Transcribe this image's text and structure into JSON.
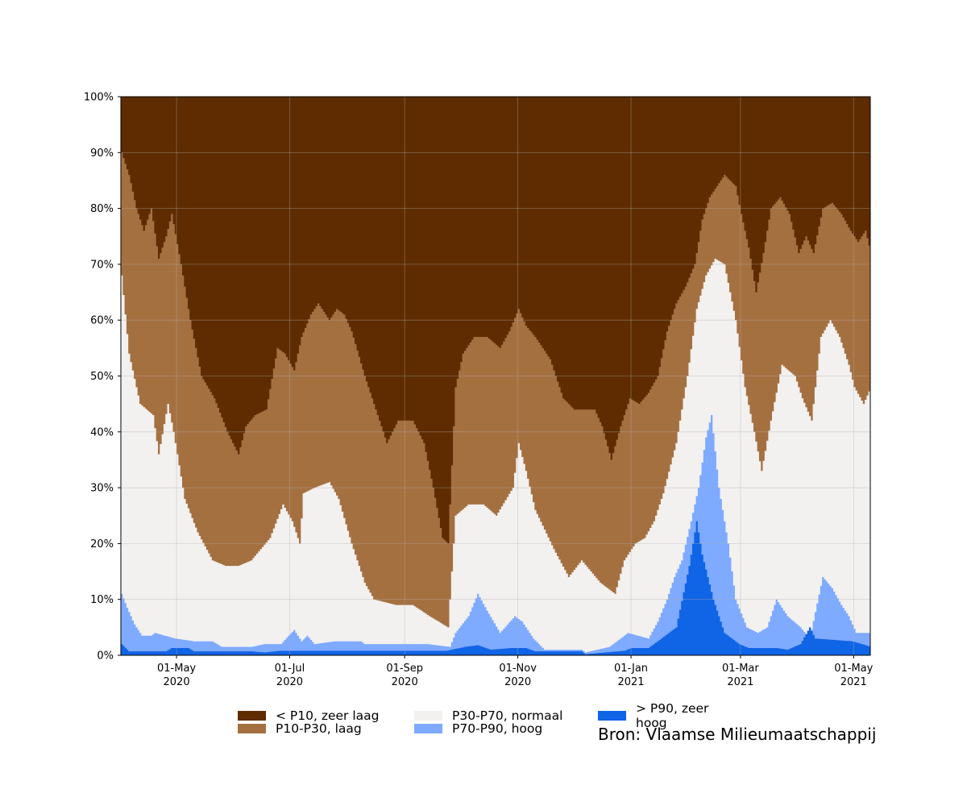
{
  "chart_data": {
    "type": "area",
    "stacked": true,
    "stacking": "percent",
    "title": "",
    "xlabel": "",
    "ylabel": "",
    "x_range": [
      "2020-04-01",
      "2021-05-10"
    ],
    "ylim": [
      0,
      100
    ],
    "grid": true,
    "y_ticks": [
      {
        "value": 0,
        "label": "0%"
      },
      {
        "value": 10,
        "label": "10%"
      },
      {
        "value": 20,
        "label": "20%"
      },
      {
        "value": 30,
        "label": "30%"
      },
      {
        "value": 40,
        "label": "40%"
      },
      {
        "value": 50,
        "label": "50%"
      },
      {
        "value": 60,
        "label": "60%"
      },
      {
        "value": 70,
        "label": "70%"
      },
      {
        "value": 80,
        "label": "80%"
      },
      {
        "value": 90,
        "label": "90%"
      },
      {
        "value": 100,
        "label": "100%"
      }
    ],
    "x_ticks": [
      {
        "date": "2020-05-01",
        "line1": "01-May",
        "line2": "2020"
      },
      {
        "date": "2020-07-01",
        "line1": "01-Jul",
        "line2": "2020"
      },
      {
        "date": "2020-09-01",
        "line1": "01-Sep",
        "line2": "2020"
      },
      {
        "date": "2020-11-01",
        "line1": "01-Nov",
        "line2": "2020"
      },
      {
        "date": "2021-01-01",
        "line1": "01-Jan",
        "line2": "2021"
      },
      {
        "date": "2021-03-01",
        "line1": "01-Mar",
        "line2": "2021"
      },
      {
        "date": "2021-05-01",
        "line1": "01-May",
        "line2": "2021"
      }
    ],
    "legend": [
      {
        "label": "< P10, zeer laag",
        "color": "#5e2c00"
      },
      {
        "label": "P10-P30, laag",
        "color": "#a57040"
      },
      {
        "label": "P30-P70, normaal",
        "color": "#f2f1f0"
      },
      {
        "label": "P70-P90, hoog",
        "color": "#7eaaff"
      },
      {
        "label": "> P90, zeer hoog",
        "color": "#1064e6"
      }
    ],
    "legend_placement": "below",
    "cumulative_boundaries": [
      {
        "name": "> P90, zeer hoog",
        "color": "#1064e6",
        "points": [
          [
            "2020-04-01",
            2
          ],
          [
            "2020-04-05",
            0.7
          ],
          [
            "2020-04-25",
            0.7
          ],
          [
            "2020-04-28",
            1.3
          ],
          [
            "2020-05-07",
            1.3
          ],
          [
            "2020-05-10",
            0.7
          ],
          [
            "2020-06-10",
            0.7
          ],
          [
            "2020-06-17",
            0.5
          ],
          [
            "2020-06-25",
            0.8
          ],
          [
            "2020-08-20",
            0.8
          ],
          [
            "2020-09-23",
            0.8
          ],
          [
            "2020-10-03",
            1.5
          ],
          [
            "2020-10-10",
            1.8
          ],
          [
            "2020-10-17",
            1.0
          ],
          [
            "2020-10-28",
            1.3
          ],
          [
            "2020-11-05",
            1.3
          ],
          [
            "2020-11-10",
            0.7
          ],
          [
            "2020-12-05",
            0.7
          ],
          [
            "2020-12-07",
            0.2
          ],
          [
            "2020-12-28",
            0.8
          ],
          [
            "2021-01-01",
            1.3
          ],
          [
            "2021-01-10",
            1.3
          ],
          [
            "2021-01-17",
            3
          ],
          [
            "2021-01-25",
            5
          ],
          [
            "2021-02-01",
            16
          ],
          [
            "2021-02-05",
            24
          ],
          [
            "2021-02-08",
            18
          ],
          [
            "2021-02-14",
            10
          ],
          [
            "2021-02-20",
            4
          ],
          [
            "2021-02-28",
            2
          ],
          [
            "2021-03-05",
            1.3
          ],
          [
            "2021-03-20",
            1.3
          ],
          [
            "2021-03-26",
            1
          ],
          [
            "2021-04-02",
            2
          ],
          [
            "2021-04-07",
            5
          ],
          [
            "2021-04-10",
            3
          ],
          [
            "2021-04-30",
            2.5
          ],
          [
            "2021-05-10",
            1.5
          ]
        ]
      },
      {
        "name": "P70-P90, hoog",
        "color": "#7eaaff",
        "points": [
          [
            "2020-04-01",
            11
          ],
          [
            "2020-04-04",
            8.5
          ],
          [
            "2020-04-08",
            5.5
          ],
          [
            "2020-04-12",
            3.5
          ],
          [
            "2020-04-17",
            3.5
          ],
          [
            "2020-04-19",
            4
          ],
          [
            "2020-04-30",
            3
          ],
          [
            "2020-05-10",
            2.5
          ],
          [
            "2020-05-20",
            2.5
          ],
          [
            "2020-05-25",
            1.5
          ],
          [
            "2020-06-10",
            1.5
          ],
          [
            "2020-06-17",
            2
          ],
          [
            "2020-06-26",
            2
          ],
          [
            "2020-06-30",
            3.5
          ],
          [
            "2020-07-03",
            4.5
          ],
          [
            "2020-07-07",
            2.5
          ],
          [
            "2020-07-10",
            3.5
          ],
          [
            "2020-07-14",
            2
          ],
          [
            "2020-07-25",
            2.5
          ],
          [
            "2020-08-08",
            2.5
          ],
          [
            "2020-08-10",
            2
          ],
          [
            "2020-09-13",
            2
          ],
          [
            "2020-09-25",
            1.5
          ],
          [
            "2020-09-28",
            4
          ],
          [
            "2020-10-05",
            7
          ],
          [
            "2020-10-10",
            11
          ],
          [
            "2020-10-15",
            8
          ],
          [
            "2020-10-22",
            4
          ],
          [
            "2020-10-30",
            7
          ],
          [
            "2020-11-03",
            6
          ],
          [
            "2020-11-09",
            3
          ],
          [
            "2020-11-15",
            1
          ],
          [
            "2020-12-05",
            1
          ],
          [
            "2020-12-07",
            0.5
          ],
          [
            "2020-12-20",
            1.5
          ],
          [
            "2020-12-30",
            4
          ],
          [
            "2021-01-10",
            3
          ],
          [
            "2021-01-15",
            6
          ],
          [
            "2021-01-20",
            10
          ],
          [
            "2021-01-24",
            14
          ],
          [
            "2021-01-28",
            17
          ],
          [
            "2021-02-02",
            24
          ],
          [
            "2021-02-06",
            30
          ],
          [
            "2021-02-10",
            39
          ],
          [
            "2021-02-13",
            43
          ],
          [
            "2021-02-17",
            30
          ],
          [
            "2021-02-22",
            20
          ],
          [
            "2021-02-26",
            10
          ],
          [
            "2021-03-04",
            5
          ],
          [
            "2021-03-10",
            4
          ],
          [
            "2021-03-15",
            5
          ],
          [
            "2021-03-20",
            10
          ],
          [
            "2021-03-26",
            7
          ],
          [
            "2021-04-02",
            5
          ],
          [
            "2021-04-07",
            3
          ],
          [
            "2021-04-14",
            14
          ],
          [
            "2021-04-19",
            12
          ],
          [
            "2021-04-24",
            9
          ],
          [
            "2021-04-28",
            7
          ],
          [
            "2021-05-02",
            4
          ],
          [
            "2021-05-10",
            4
          ]
        ]
      },
      {
        "name": "P30-P70, normaal",
        "color": "#f2f1f0",
        "points": [
          [
            "2020-04-01",
            68
          ],
          [
            "2020-04-05",
            54
          ],
          [
            "2020-04-11",
            45
          ],
          [
            "2020-04-18",
            43
          ],
          [
            "2020-04-21",
            36
          ],
          [
            "2020-04-26",
            45
          ],
          [
            "2020-04-29",
            40
          ],
          [
            "2020-05-05",
            28
          ],
          [
            "2020-05-12",
            22
          ],
          [
            "2020-05-20",
            17
          ],
          [
            "2020-05-27",
            16
          ],
          [
            "2020-06-03",
            16
          ],
          [
            "2020-06-10",
            17
          ],
          [
            "2020-06-20",
            21
          ],
          [
            "2020-06-27",
            27
          ],
          [
            "2020-07-02",
            24
          ],
          [
            "2020-07-06",
            20
          ],
          [
            "2020-07-08",
            29
          ],
          [
            "2020-07-14",
            30
          ],
          [
            "2020-07-22",
            31
          ],
          [
            "2020-07-27",
            28
          ],
          [
            "2020-08-03",
            20
          ],
          [
            "2020-08-10",
            13
          ],
          [
            "2020-08-15",
            10
          ],
          [
            "2020-08-27",
            9
          ],
          [
            "2020-09-05",
            9
          ],
          [
            "2020-09-14",
            7
          ],
          [
            "2020-09-24",
            5
          ],
          [
            "2020-09-28",
            25
          ],
          [
            "2020-10-05",
            27
          ],
          [
            "2020-10-13",
            27
          ],
          [
            "2020-10-20",
            25
          ],
          [
            "2020-10-29",
            30
          ],
          [
            "2020-11-01",
            38
          ],
          [
            "2020-11-05",
            33
          ],
          [
            "2020-11-10",
            26
          ],
          [
            "2020-11-20",
            19
          ],
          [
            "2020-11-28",
            14
          ],
          [
            "2020-12-05",
            17
          ],
          [
            "2020-12-10",
            15
          ],
          [
            "2020-12-15",
            13
          ],
          [
            "2020-12-23",
            11
          ],
          [
            "2020-12-28",
            17
          ],
          [
            "2021-01-03",
            20
          ],
          [
            "2021-01-08",
            21
          ],
          [
            "2021-01-13",
            24
          ],
          [
            "2021-01-18",
            29
          ],
          [
            "2021-01-25",
            38
          ],
          [
            "2021-01-31",
            50
          ],
          [
            "2021-02-05",
            62
          ],
          [
            "2021-02-10",
            68
          ],
          [
            "2021-02-15",
            71
          ],
          [
            "2021-02-20",
            70
          ],
          [
            "2021-02-26",
            60
          ],
          [
            "2021-03-03",
            48
          ],
          [
            "2021-03-08",
            40
          ],
          [
            "2021-03-12",
            33
          ],
          [
            "2021-03-17",
            42
          ],
          [
            "2021-03-23",
            52
          ],
          [
            "2021-03-30",
            50
          ],
          [
            "2021-04-03",
            46
          ],
          [
            "2021-04-08",
            42
          ],
          [
            "2021-04-13",
            57
          ],
          [
            "2021-04-18",
            60
          ],
          [
            "2021-04-23",
            57
          ],
          [
            "2021-04-28",
            52
          ],
          [
            "2021-05-01",
            48
          ],
          [
            "2021-05-06",
            45
          ],
          [
            "2021-05-10",
            48
          ]
        ]
      },
      {
        "name": "P10-P30, laag",
        "color": "#a57040",
        "points": [
          [
            "2020-04-01",
            90
          ],
          [
            "2020-04-05",
            86
          ],
          [
            "2020-04-09",
            80
          ],
          [
            "2020-04-13",
            76
          ],
          [
            "2020-04-17",
            80
          ],
          [
            "2020-04-21",
            71
          ],
          [
            "2020-04-25",
            75
          ],
          [
            "2020-04-28",
            79
          ],
          [
            "2020-05-03",
            70
          ],
          [
            "2020-05-08",
            60
          ],
          [
            "2020-05-14",
            50
          ],
          [
            "2020-05-21",
            46
          ],
          [
            "2020-05-28",
            40
          ],
          [
            "2020-06-03",
            36
          ],
          [
            "2020-06-07",
            41
          ],
          [
            "2020-06-12",
            43
          ],
          [
            "2020-06-18",
            44
          ],
          [
            "2020-06-24",
            55
          ],
          [
            "2020-06-28",
            54
          ],
          [
            "2020-07-03",
            51
          ],
          [
            "2020-07-07",
            57
          ],
          [
            "2020-07-12",
            61
          ],
          [
            "2020-07-16",
            63
          ],
          [
            "2020-07-22",
            60
          ],
          [
            "2020-07-26",
            62
          ],
          [
            "2020-07-30",
            61
          ],
          [
            "2020-08-03",
            58
          ],
          [
            "2020-08-10",
            50
          ],
          [
            "2020-08-18",
            42
          ],
          [
            "2020-08-22",
            38
          ],
          [
            "2020-08-28",
            42
          ],
          [
            "2020-09-05",
            42
          ],
          [
            "2020-09-11",
            38
          ],
          [
            "2020-09-16",
            30
          ],
          [
            "2020-09-21",
            21
          ],
          [
            "2020-09-24",
            20
          ],
          [
            "2020-09-28",
            48
          ],
          [
            "2020-10-02",
            54
          ],
          [
            "2020-10-08",
            57
          ],
          [
            "2020-10-15",
            57
          ],
          [
            "2020-10-22",
            55
          ],
          [
            "2020-10-27",
            58
          ],
          [
            "2020-11-01",
            62
          ],
          [
            "2020-11-05",
            59
          ],
          [
            "2020-11-10",
            57
          ],
          [
            "2020-11-18",
            53
          ],
          [
            "2020-11-25",
            46
          ],
          [
            "2020-12-01",
            44
          ],
          [
            "2020-12-07",
            44
          ],
          [
            "2020-12-12",
            44
          ],
          [
            "2020-12-16",
            41
          ],
          [
            "2020-12-21",
            35
          ],
          [
            "2020-12-26",
            41
          ],
          [
            "2020-12-31",
            46
          ],
          [
            "2021-01-05",
            45
          ],
          [
            "2021-01-10",
            47
          ],
          [
            "2021-01-15",
            50
          ],
          [
            "2021-01-20",
            58
          ],
          [
            "2021-01-25",
            63
          ],
          [
            "2021-01-30",
            66
          ],
          [
            "2021-02-04",
            70
          ],
          [
            "2021-02-08",
            78
          ],
          [
            "2021-02-12",
            82
          ],
          [
            "2021-02-16",
            84
          ],
          [
            "2021-02-20",
            86
          ],
          [
            "2021-02-26",
            84
          ],
          [
            "2021-03-01",
            79
          ],
          [
            "2021-03-05",
            73
          ],
          [
            "2021-03-09",
            65
          ],
          [
            "2021-03-13",
            72
          ],
          [
            "2021-03-17",
            80
          ],
          [
            "2021-03-22",
            82
          ],
          [
            "2021-03-27",
            79
          ],
          [
            "2021-04-01",
            72
          ],
          [
            "2021-04-05",
            75
          ],
          [
            "2021-04-09",
            72
          ],
          [
            "2021-04-14",
            80
          ],
          [
            "2021-04-19",
            81
          ],
          [
            "2021-04-24",
            79
          ],
          [
            "2021-04-29",
            76
          ],
          [
            "2021-05-03",
            74
          ],
          [
            "2021-05-07",
            76
          ],
          [
            "2021-05-10",
            72
          ]
        ]
      },
      {
        "name": "< P10, zeer laag",
        "color": "#5e2c00",
        "points": [
          [
            "2020-04-01",
            100
          ],
          [
            "2021-05-10",
            100
          ]
        ]
      }
    ]
  },
  "source": "Bron: Vlaamse Milieumaatschappij"
}
